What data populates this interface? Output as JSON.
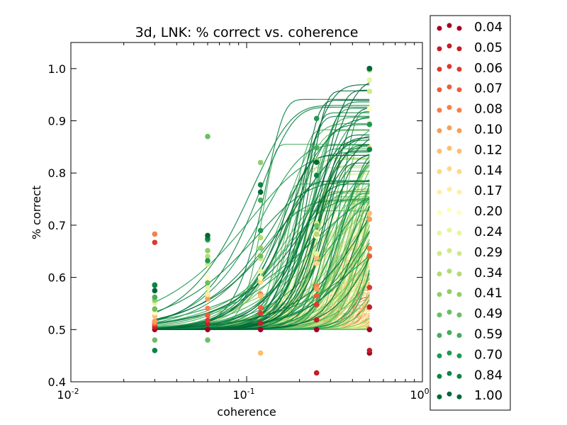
{
  "chart_data": {
    "type": "line",
    "title": "3d, LNK: % correct vs. coherence",
    "xlabel": "coherence",
    "ylabel": "% correct",
    "xscale": "log",
    "xlim": [
      0.01,
      1.0
    ],
    "ylim": [
      0.4,
      1.05
    ],
    "x_ticks": [
      {
        "value": 0.01,
        "label_base": "10",
        "label_exp": "-2"
      },
      {
        "value": 0.1,
        "label_base": "10",
        "label_exp": "-1"
      },
      {
        "value": 1.0,
        "label_base": "10",
        "label_exp": "0"
      }
    ],
    "y_ticks": [
      "0.4",
      "0.5",
      "0.6",
      "0.7",
      "0.8",
      "0.9",
      "1.0"
    ],
    "coherence_levels": [
      0.03,
      0.06,
      0.12,
      0.25,
      0.5
    ],
    "legend_position": "right-outside",
    "legend": [
      {
        "label": "0.04",
        "color": "#a50026"
      },
      {
        "label": "0.05",
        "color": "#c41e27"
      },
      {
        "label": "0.06",
        "color": "#dc3b2c"
      },
      {
        "label": "0.07",
        "color": "#ec5e3b"
      },
      {
        "label": "0.08",
        "color": "#f67f4b"
      },
      {
        "label": "0.10",
        "color": "#f99d59"
      },
      {
        "label": "0.12",
        "color": "#fdbe6e"
      },
      {
        "label": "0.14",
        "color": "#fdd889"
      },
      {
        "label": "0.17",
        "color": "#feeea4"
      },
      {
        "label": "0.20",
        "color": "#fefebe"
      },
      {
        "label": "0.24",
        "color": "#e8f59f"
      },
      {
        "label": "0.29",
        "color": "#cfea89"
      },
      {
        "label": "0.34",
        "color": "#b1dc72"
      },
      {
        "label": "0.41",
        "color": "#90cf68"
      },
      {
        "label": "0.49",
        "color": "#6bbe64"
      },
      {
        "label": "0.59",
        "color": "#45ad5b"
      },
      {
        "label": "0.70",
        "color": "#1e9a51"
      },
      {
        "label": "0.84",
        "color": "#0d8444"
      },
      {
        "label": "1.00",
        "color": "#006837"
      }
    ],
    "series_summary": "many psychometric curves per legend level, each rising from 0.5 toward up to 1.0 between coherence 0.03 and 0.5",
    "outlier_points": [
      {
        "x": 0.06,
        "y": 0.87,
        "color": "#6bbe64"
      },
      {
        "x": 0.03,
        "y": 0.48,
        "color": "#6bbe64"
      },
      {
        "x": 0.06,
        "y": 0.48,
        "color": "#6bbe64"
      },
      {
        "x": 0.03,
        "y": 0.46,
        "color": "#0d8444"
      },
      {
        "x": 0.12,
        "y": 0.455,
        "color": "#fdbe6e"
      },
      {
        "x": 0.25,
        "y": 0.417,
        "color": "#c41e27"
      },
      {
        "x": 0.5,
        "y": 0.455,
        "color": "#a50026"
      },
      {
        "x": 0.5,
        "y": 0.46,
        "color": "#c41e27"
      },
      {
        "x": 0.03,
        "y": 0.683,
        "color": "#f67f4b"
      },
      {
        "x": 0.03,
        "y": 0.667,
        "color": "#dc3b2c"
      },
      {
        "x": 0.12,
        "y": 0.82,
        "color": "#90cf68"
      },
      {
        "x": 0.5,
        "y": 1.0,
        "color": "#006837"
      },
      {
        "x": 0.5,
        "y": 0.845,
        "color": "#0d8444"
      },
      {
        "x": 0.5,
        "y": 0.893,
        "color": "#1e9a51"
      }
    ]
  }
}
